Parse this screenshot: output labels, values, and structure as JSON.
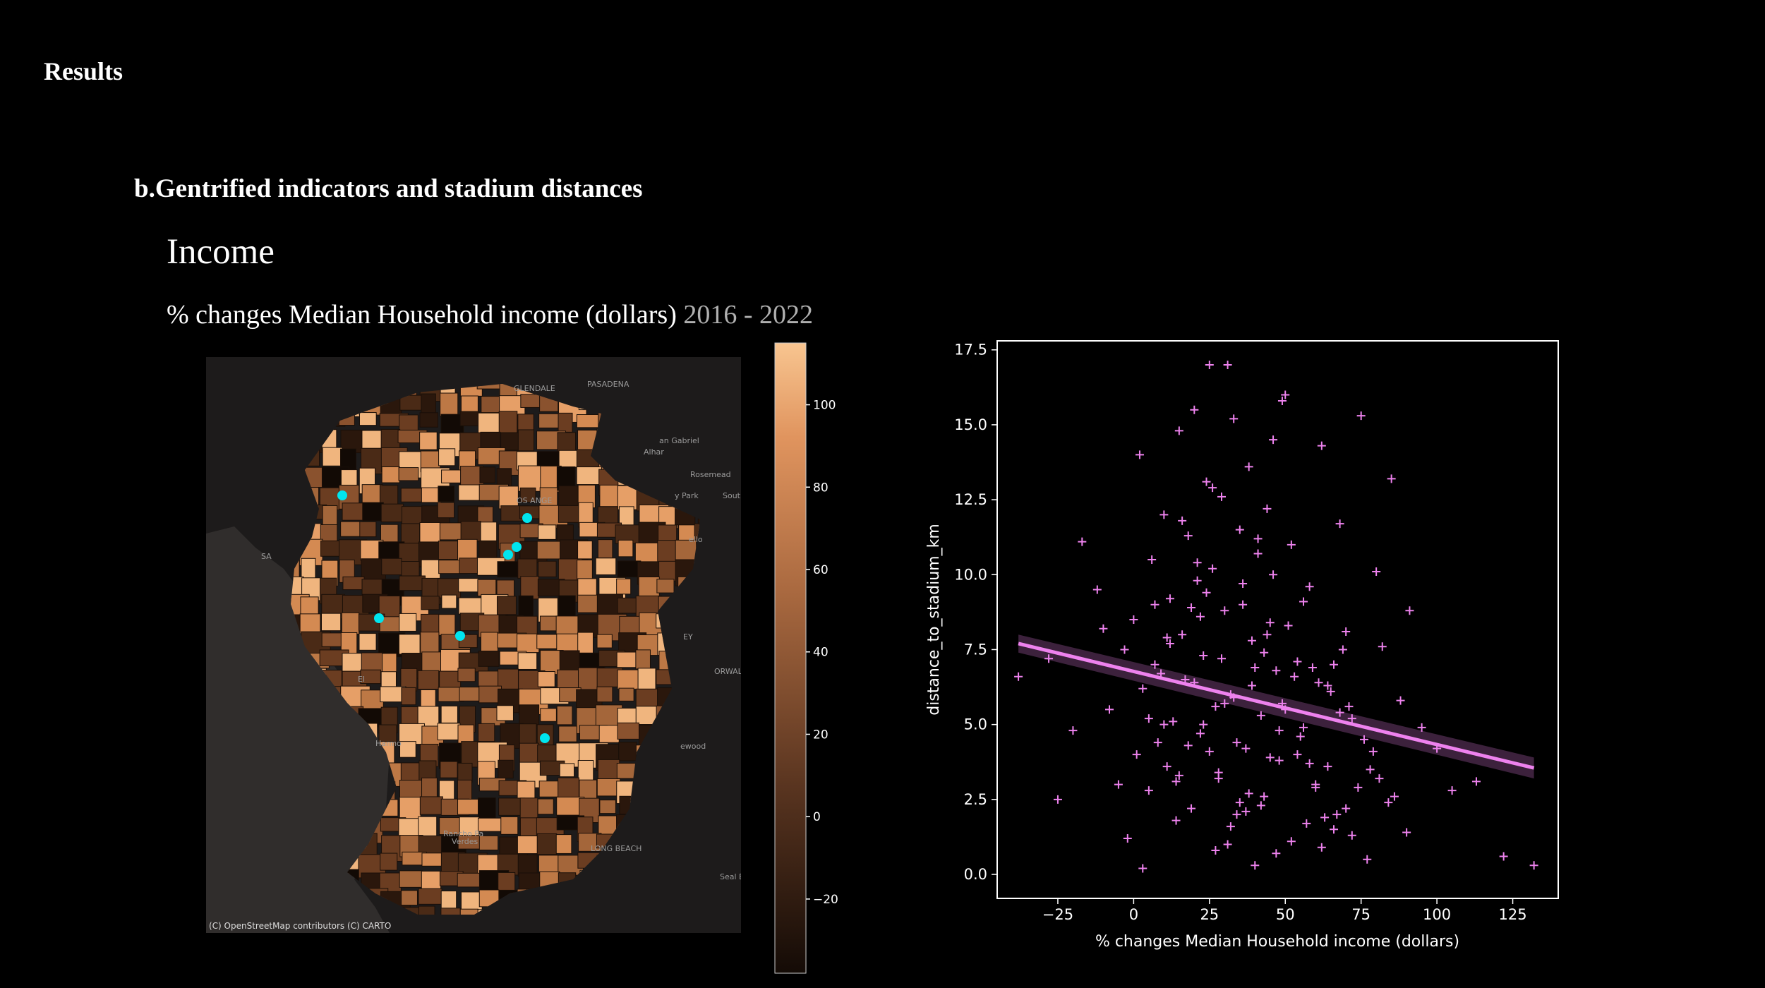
{
  "heading": "Results",
  "section": "b.Gentrified indicators and stadium distances",
  "topic": "Income",
  "caption": {
    "text": "% changes Median Household income (dollars)",
    "years": "2016 - 2022"
  },
  "map": {
    "attribution": "(C) OpenStreetMap contributors (C) CARTO",
    "place_labels": [
      "GLENDALE",
      "PASADENA",
      "an Gabriel",
      "Alhar",
      "Rosemead",
      "y Park",
      "Sout",
      "OS ANGE",
      "ello",
      "SA",
      "EY",
      "ORWAL",
      "Harmo",
      "Rancho Pa",
      "Verdes",
      "LONG BEACH",
      "Seal Beach",
      "ewood",
      "El"
    ],
    "stadium_color": "#00e5ee",
    "stadium_count": 7
  },
  "colorbar": {
    "ticks": [
      100,
      80,
      60,
      40,
      20,
      0,
      -20
    ],
    "tick_labels": [
      "100",
      "80",
      "60",
      "40",
      "20",
      "0",
      "−20"
    ],
    "range": [
      -38,
      115
    ],
    "colormap": "copper"
  },
  "chart_data": {
    "type": "scatter",
    "xlabel": "% changes Median Household income (dollars)",
    "ylabel": "distance_to_stadium_km",
    "xlim": [
      -45,
      140
    ],
    "ylim": [
      -0.8,
      17.8
    ],
    "xticks": [
      -25,
      0,
      25,
      50,
      75,
      100,
      125
    ],
    "xtick_labels": [
      "−25",
      "0",
      "25",
      "50",
      "75",
      "100",
      "125"
    ],
    "yticks": [
      0.0,
      2.5,
      5.0,
      7.5,
      10.0,
      12.5,
      15.0,
      17.5
    ],
    "ytick_labels": [
      "0.0",
      "2.5",
      "5.0",
      "7.5",
      "10.0",
      "12.5",
      "15.0",
      "17.5"
    ],
    "marker": "+",
    "color": "#ee82ee",
    "regression": {
      "x": [
        -38,
        132
      ],
      "y": [
        7.7,
        3.55
      ]
    },
    "points": {
      "x": [
        -38,
        -28,
        -20,
        -25,
        -17,
        -12,
        -10,
        -8,
        -5,
        -3,
        -2,
        0,
        1,
        2,
        3,
        5,
        6,
        7,
        8,
        10,
        11,
        12,
        13,
        14,
        15,
        16,
        17,
        18,
        19,
        20,
        21,
        22,
        23,
        24,
        25,
        26,
        27,
        28,
        29,
        30,
        31,
        32,
        33,
        34,
        35,
        36,
        37,
        38,
        39,
        40,
        41,
        42,
        43,
        44,
        45,
        46,
        47,
        48,
        49,
        50,
        52,
        54,
        56,
        58,
        60,
        62,
        64,
        66,
        68,
        70,
        72,
        75,
        78,
        80,
        82,
        85,
        88,
        90,
        95,
        100,
        105,
        113,
        122,
        132,
        10,
        15,
        20,
        25,
        30,
        35,
        40,
        45,
        50,
        55,
        60,
        65,
        70,
        12,
        18,
        22,
        28,
        33,
        38,
        43,
        48,
        53,
        58,
        63,
        68,
        24,
        31,
        37,
        27,
        32,
        42,
        52,
        47,
        57,
        62,
        67,
        72,
        77,
        5,
        9,
        14,
        19,
        23,
        29,
        34,
        39,
        44,
        49,
        54,
        59,
        64,
        69,
        74,
        79,
        84,
        3,
        7,
        11,
        16,
        21,
        26,
        36,
        41,
        46,
        51,
        56,
        61,
        66,
        71,
        76,
        81,
        86,
        91
      ],
      "y": [
        6.6,
        7.2,
        4.8,
        2.5,
        11.1,
        9.5,
        8.2,
        5.5,
        3.0,
        7.5,
        1.2,
        8.5,
        4.0,
        14.0,
        6.2,
        2.8,
        10.5,
        7.0,
        4.4,
        12.0,
        3.6,
        9.2,
        5.1,
        1.8,
        14.8,
        8.0,
        6.5,
        11.3,
        2.2,
        15.5,
        9.8,
        4.7,
        7.3,
        13.1,
        17.0,
        10.2,
        5.6,
        3.2,
        12.6,
        8.8,
        17.0,
        6.0,
        15.2,
        2.0,
        11.5,
        9.0,
        4.2,
        13.6,
        7.8,
        0.3,
        10.7,
        5.3,
        2.6,
        12.2,
        8.4,
        14.5,
        6.8,
        3.8,
        15.8,
        16.0,
        11.0,
        7.1,
        4.9,
        9.6,
        2.9,
        14.3,
        6.3,
        1.5,
        11.7,
        8.1,
        5.2,
        15.3,
        3.5,
        10.1,
        7.6,
        13.2,
        5.8,
        1.4,
        4.9,
        4.2,
        2.8,
        3.1,
        0.6,
        0.3,
        5.0,
        3.3,
        6.4,
        4.1,
        5.7,
        2.4,
        6.9,
        3.9,
        5.5,
        4.6,
        3.0,
        6.1,
        2.2,
        7.7,
        4.3,
        8.6,
        3.4,
        5.9,
        2.7,
        7.4,
        4.8,
        6.6,
        3.7,
        1.9,
        5.4,
        9.4,
        1.0,
        2.1,
        0.8,
        1.6,
        2.3,
        1.1,
        0.7,
        1.7,
        0.9,
        2.0,
        1.3,
        0.5,
        5.2,
        6.7,
        3.1,
        8.9,
        5.0,
        7.2,
        4.4,
        6.3,
        8.0,
        5.7,
        4.0,
        6.9,
        3.6,
        7.5,
        2.9,
        4.1,
        2.4,
        0.2,
        9.0,
        7.9,
        11.8,
        10.4,
        12.9,
        9.7,
        11.2,
        10.0,
        8.3,
        9.1,
        6.4,
        7.0,
        5.6,
        4.5,
        3.2,
        2.6,
        8.8
      ]
    }
  }
}
